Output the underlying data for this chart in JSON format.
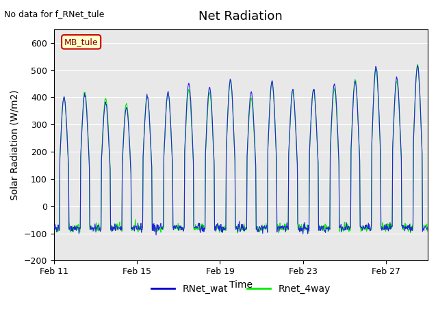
{
  "title": "Net Radiation",
  "xlabel": "Time",
  "ylabel": "Solar Radiation (W/m2)",
  "top_left_text": "No data for f_RNet_tule",
  "legend_box_label": "MB_tule",
  "legend_entries": [
    "RNet_wat",
    "Rnet_4way"
  ],
  "legend_colors": [
    "#0000cc",
    "#00ee00"
  ],
  "ylim": [
    -200,
    650
  ],
  "yticks": [
    -200,
    -100,
    0,
    100,
    200,
    300,
    400,
    500,
    600
  ],
  "xtick_labels": [
    "Feb 11",
    "Feb 15",
    "Feb 19",
    "Feb 23",
    "Feb 27"
  ],
  "bg_color": "#e8e8e8",
  "plot_bg_color": "#e8e8e8",
  "line_color_blue": "#2222dd",
  "line_color_green": "#00ee00",
  "n_days": 18,
  "n_points_per_day": 48
}
